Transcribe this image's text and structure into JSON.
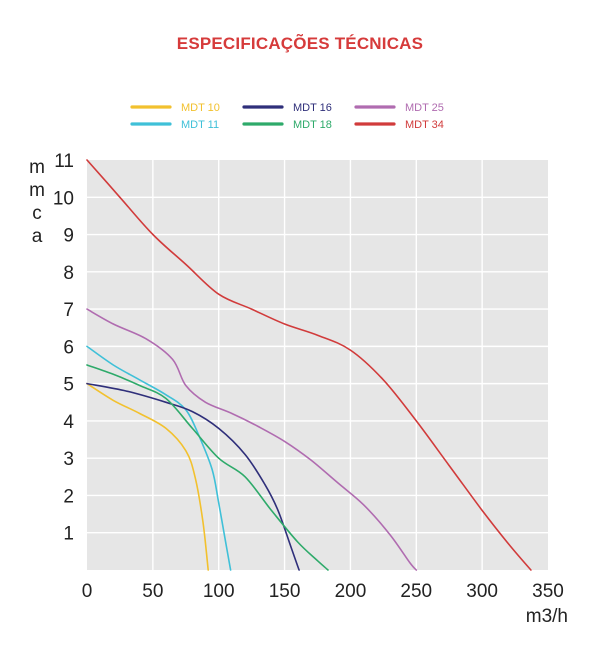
{
  "chart_data": {
    "type": "line",
    "title": "ESPECIFICAÇÕES TÉCNICAS",
    "xlabel": "m3/h",
    "ylabel_letters": [
      "m",
      "m",
      "c",
      "a"
    ],
    "xlim": [
      0,
      350
    ],
    "ylim": [
      0,
      11
    ],
    "x_ticks": [
      0,
      50,
      100,
      150,
      200,
      250,
      300,
      350
    ],
    "y_ticks": [
      1,
      2,
      3,
      4,
      5,
      6,
      7,
      8,
      9,
      10,
      11
    ],
    "grid": true,
    "legend_position": "top",
    "series": [
      {
        "name": "MDT 10",
        "color": "#f2c12e",
        "points": [
          [
            0,
            5.0
          ],
          [
            20,
            4.55
          ],
          [
            40,
            4.2
          ],
          [
            60,
            3.8
          ],
          [
            75,
            3.2
          ],
          [
            82,
            2.5
          ],
          [
            88,
            1.3
          ],
          [
            92,
            0.0
          ]
        ]
      },
      {
        "name": "MDT 11",
        "color": "#3fc0d8",
        "points": [
          [
            0,
            6.0
          ],
          [
            20,
            5.5
          ],
          [
            40,
            5.1
          ],
          [
            60,
            4.7
          ],
          [
            75,
            4.3
          ],
          [
            85,
            3.6
          ],
          [
            95,
            2.7
          ],
          [
            100,
            1.8
          ],
          [
            105,
            0.8
          ],
          [
            109,
            0.0
          ]
        ]
      },
      {
        "name": "MDT 16",
        "color": "#2f2f7a",
        "points": [
          [
            0,
            5.0
          ],
          [
            30,
            4.8
          ],
          [
            60,
            4.5
          ],
          [
            80,
            4.25
          ],
          [
            100,
            3.8
          ],
          [
            120,
            3.1
          ],
          [
            135,
            2.3
          ],
          [
            145,
            1.6
          ],
          [
            155,
            0.6
          ],
          [
            161,
            0.0
          ]
        ]
      },
      {
        "name": "MDT 18",
        "color": "#2eaa6a",
        "points": [
          [
            0,
            5.5
          ],
          [
            20,
            5.25
          ],
          [
            40,
            4.95
          ],
          [
            60,
            4.6
          ],
          [
            80,
            3.8
          ],
          [
            100,
            3.0
          ],
          [
            120,
            2.5
          ],
          [
            140,
            1.6
          ],
          [
            160,
            0.75
          ],
          [
            175,
            0.25
          ],
          [
            183,
            0.0
          ]
        ]
      },
      {
        "name": "MDT 25",
        "color": "#b06cb0",
        "points": [
          [
            0,
            7.0
          ],
          [
            20,
            6.6
          ],
          [
            45,
            6.2
          ],
          [
            65,
            5.65
          ],
          [
            75,
            4.95
          ],
          [
            90,
            4.5
          ],
          [
            110,
            4.2
          ],
          [
            130,
            3.85
          ],
          [
            150,
            3.45
          ],
          [
            170,
            2.95
          ],
          [
            190,
            2.35
          ],
          [
            210,
            1.75
          ],
          [
            230,
            0.95
          ],
          [
            245,
            0.2
          ],
          [
            250,
            0.0
          ]
        ]
      },
      {
        "name": "MDT 34",
        "color": "#d13b3b",
        "points": [
          [
            0,
            11.0
          ],
          [
            25,
            10.0
          ],
          [
            50,
            9.0
          ],
          [
            75,
            8.2
          ],
          [
            100,
            7.4
          ],
          [
            125,
            7.0
          ],
          [
            150,
            6.6
          ],
          [
            175,
            6.3
          ],
          [
            200,
            5.9
          ],
          [
            225,
            5.1
          ],
          [
            250,
            4.0
          ],
          [
            275,
            2.8
          ],
          [
            300,
            1.6
          ],
          [
            320,
            0.7
          ],
          [
            337,
            0.0
          ]
        ]
      }
    ]
  }
}
